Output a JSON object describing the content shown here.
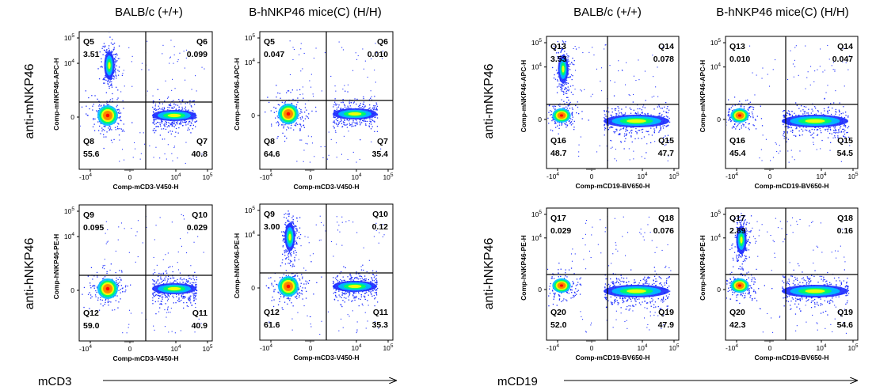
{
  "figure": {
    "column_titles": [
      "BALB/c (+/+)",
      "B-hNKP46 mice(C) (H/H)",
      "BALB/c (+/+)",
      "B-hNKP46 mice(C) (H/H)"
    ],
    "row_titles": [
      "anti-mNKP46",
      "anti-hNKP46",
      "anti-mNKP46",
      "anti-hNKP46"
    ],
    "footer_labels": [
      "mCD3",
      "mCD19"
    ]
  },
  "colors": {
    "dot_low": "#1f30ff",
    "dot_mid1": "#00bfff",
    "dot_mid2": "#00ff60",
    "dot_high1": "#ffff00",
    "dot_high2": "#ff8000",
    "dot_peak": "#ff0000"
  },
  "axis_ticks": {
    "x": [
      {
        "base": "-10",
        "exp": "4"
      },
      {
        "base": "0",
        "exp": ""
      },
      {
        "base": "10",
        "exp": "4"
      },
      {
        "base": "10",
        "exp": "5"
      }
    ],
    "y": [
      {
        "base": "0",
        "exp": ""
      },
      {
        "base": "10",
        "exp": "4"
      },
      {
        "base": "10",
        "exp": "5"
      }
    ]
  },
  "chart_data": [
    {
      "type": "scatter",
      "subtype": "flow-cytometry-density-plot",
      "title": "BALB/c (+/+)",
      "row": "anti-mNKP46",
      "xlabel": "Comp-mCD3-V450-H",
      "ylabel": "Comp-mNKP46-APC-H",
      "quadrants": [
        {
          "name": "Q5",
          "value": "3.51",
          "position": "top-left"
        },
        {
          "name": "Q6",
          "value": "0.099",
          "position": "top-right"
        },
        {
          "name": "Q8",
          "value": "55.6",
          "position": "bottom-left"
        },
        {
          "name": "Q7",
          "value": "40.8",
          "position": "bottom-right"
        }
      ]
    },
    {
      "type": "scatter",
      "subtype": "flow-cytometry-density-plot",
      "title": "B-hNKP46 mice(C) (H/H)",
      "row": "anti-mNKP46",
      "xlabel": "Comp-mCD3-V450-H",
      "ylabel": "Comp-mNKP46-APC-H",
      "quadrants": [
        {
          "name": "Q5",
          "value": "0.047",
          "position": "top-left"
        },
        {
          "name": "Q6",
          "value": "0.010",
          "position": "top-right"
        },
        {
          "name": "Q8",
          "value": "64.6",
          "position": "bottom-left"
        },
        {
          "name": "Q7",
          "value": "35.4",
          "position": "bottom-right"
        }
      ]
    },
    {
      "type": "scatter",
      "subtype": "flow-cytometry-density-plot",
      "title": "BALB/c (+/+)",
      "row": "anti-hNKP46",
      "xlabel": "Comp-mCD3-V450-H",
      "ylabel": "Comp-hNKP46-PE-H",
      "quadrants": [
        {
          "name": "Q9",
          "value": "0.095",
          "position": "top-left"
        },
        {
          "name": "Q10",
          "value": "0.029",
          "position": "top-right"
        },
        {
          "name": "Q12",
          "value": "59.0",
          "position": "bottom-left"
        },
        {
          "name": "Q11",
          "value": "40.9",
          "position": "bottom-right"
        }
      ]
    },
    {
      "type": "scatter",
      "subtype": "flow-cytometry-density-plot",
      "title": "B-hNKP46 mice(C) (H/H)",
      "row": "anti-hNKP46",
      "xlabel": "Comp-mCD3-V450-H",
      "ylabel": "Comp-hNKP46-PE-H",
      "quadrants": [
        {
          "name": "Q9",
          "value": "3.00",
          "position": "top-left"
        },
        {
          "name": "Q10",
          "value": "0.12",
          "position": "top-right"
        },
        {
          "name": "Q12",
          "value": "61.6",
          "position": "bottom-left"
        },
        {
          "name": "Q11",
          "value": "35.3",
          "position": "bottom-right"
        }
      ]
    },
    {
      "type": "scatter",
      "subtype": "flow-cytometry-density-plot",
      "title": "BALB/c (+/+)",
      "row": "anti-mNKP46",
      "xlabel": "Comp-mCD19-BV650-H",
      "ylabel": "Comp-mNKP46-APC-H",
      "quadrants": [
        {
          "name": "Q13",
          "value": "3.53",
          "position": "top-left"
        },
        {
          "name": "Q14",
          "value": "0.078",
          "position": "top-right"
        },
        {
          "name": "Q16",
          "value": "48.7",
          "position": "bottom-left"
        },
        {
          "name": "Q15",
          "value": "47.7",
          "position": "bottom-right"
        }
      ]
    },
    {
      "type": "scatter",
      "subtype": "flow-cytometry-density-plot",
      "title": "B-hNKP46 mice(C) (H/H)",
      "row": "anti-mNKP46",
      "xlabel": "Comp-mCD19-BV650-H",
      "ylabel": "Comp-mNKP46-APC-H",
      "quadrants": [
        {
          "name": "Q13",
          "value": "0.010",
          "position": "top-left"
        },
        {
          "name": "Q14",
          "value": "0.047",
          "position": "top-right"
        },
        {
          "name": "Q16",
          "value": "45.4",
          "position": "bottom-left"
        },
        {
          "name": "Q15",
          "value": "54.5",
          "position": "bottom-right"
        }
      ]
    },
    {
      "type": "scatter",
      "subtype": "flow-cytometry-density-plot",
      "title": "BALB/c (+/+)",
      "row": "anti-hNKP46",
      "xlabel": "Comp-mCD19-BV650-H",
      "ylabel": "Comp-hNKP46-PE-H",
      "quadrants": [
        {
          "name": "Q17",
          "value": "0.029",
          "position": "top-left"
        },
        {
          "name": "Q18",
          "value": "0.076",
          "position": "top-right"
        },
        {
          "name": "Q20",
          "value": "52.0",
          "position": "bottom-left"
        },
        {
          "name": "Q19",
          "value": "47.9",
          "position": "bottom-right"
        }
      ]
    },
    {
      "type": "scatter",
      "subtype": "flow-cytometry-density-plot",
      "title": "B-hNKP46 mice(C) (H/H)",
      "row": "anti-hNKP46",
      "xlabel": "Comp-mCD19-BV650-H",
      "ylabel": "Comp-hNKP46-PE-H",
      "quadrants": [
        {
          "name": "Q17",
          "value": "2.89",
          "position": "top-left"
        },
        {
          "name": "Q18",
          "value": "0.16",
          "position": "top-right"
        },
        {
          "name": "Q20",
          "value": "42.3",
          "position": "bottom-left"
        },
        {
          "name": "Q19",
          "value": "54.6",
          "position": "bottom-right"
        }
      ]
    }
  ]
}
